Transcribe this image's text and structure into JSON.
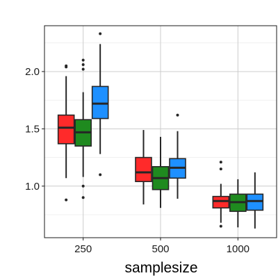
{
  "chart_data": {
    "type": "boxplot",
    "xlabel": "samplesize",
    "ylabel": "",
    "title": "",
    "categories": [
      "250",
      "500",
      "1000"
    ],
    "yticks": [
      "1.0",
      "1.5",
      "2.0"
    ],
    "ylim": [
      0.55,
      2.4
    ],
    "grid": true,
    "legend": "none",
    "series": [
      {
        "color": "#ff2a2a",
        "boxes": [
          {
            "category": "250",
            "min": 1.07,
            "q1": 1.37,
            "median": 1.51,
            "q3": 1.62,
            "max": 1.96,
            "outliers": [
              2.04,
              2.05,
              0.88
            ]
          },
          {
            "category": "500",
            "min": 0.84,
            "q1": 1.04,
            "median": 1.12,
            "q3": 1.25,
            "max": 1.49,
            "outliers": []
          },
          {
            "category": "1000",
            "min": 0.68,
            "q1": 0.81,
            "median": 0.87,
            "q3": 0.91,
            "max": 1.02,
            "outliers": [
              1.21,
              1.15,
              0.65
            ]
          }
        ]
      },
      {
        "color": "#1f8a1f",
        "boxes": [
          {
            "category": "250",
            "min": 1.08,
            "q1": 1.35,
            "median": 1.47,
            "q3": 1.58,
            "max": 1.82,
            "outliers": [
              2.1,
              2.06,
              2.02,
              1.0,
              0.9
            ]
          },
          {
            "category": "500",
            "min": 0.81,
            "q1": 0.97,
            "median": 1.07,
            "q3": 1.17,
            "max": 1.43,
            "outliers": []
          },
          {
            "category": "1000",
            "min": 0.64,
            "q1": 0.78,
            "median": 0.86,
            "q3": 0.93,
            "max": 1.06,
            "outliers": []
          }
        ]
      },
      {
        "color": "#1e90ff",
        "boxes": [
          {
            "category": "250",
            "min": 1.28,
            "q1": 1.59,
            "median": 1.72,
            "q3": 1.87,
            "max": 2.24,
            "outliers": [
              2.33,
              1.1
            ]
          },
          {
            "category": "500",
            "min": 0.89,
            "q1": 1.07,
            "median": 1.16,
            "q3": 1.24,
            "max": 1.48,
            "outliers": [
              1.62
            ]
          },
          {
            "category": "1000",
            "min": 0.63,
            "q1": 0.79,
            "median": 0.87,
            "q3": 0.93,
            "max": 1.12,
            "outliers": []
          }
        ]
      }
    ]
  }
}
